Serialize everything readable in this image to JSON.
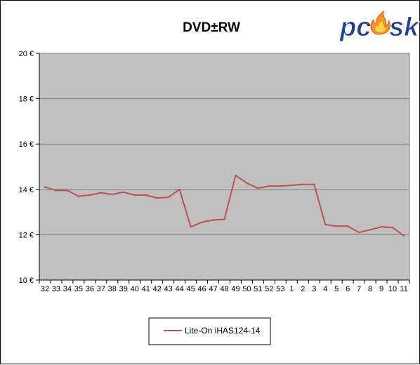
{
  "chart_data": {
    "type": "line",
    "title": "DVD±RW",
    "xlabel": "",
    "ylabel": "",
    "categories": [
      "32",
      "33",
      "34",
      "35",
      "36",
      "37",
      "38",
      "39",
      "40",
      "41",
      "42",
      "43",
      "44",
      "45",
      "46",
      "47",
      "48",
      "49",
      "50",
      "51",
      "52",
      "53",
      "1",
      "2",
      "3",
      "4",
      "5",
      "6",
      "7",
      "8",
      "9",
      "10",
      "11"
    ],
    "series": [
      {
        "name": "Lite-On  iHAS124-14",
        "color": "#c0504d",
        "values": [
          14.1,
          13.95,
          13.95,
          13.7,
          13.75,
          13.85,
          13.78,
          13.88,
          13.75,
          13.75,
          13.62,
          13.65,
          14.0,
          12.35,
          12.55,
          12.65,
          12.68,
          14.62,
          14.28,
          14.05,
          14.15,
          14.15,
          14.18,
          14.22,
          14.22,
          12.45,
          12.38,
          12.38,
          12.1,
          12.22,
          12.35,
          12.32,
          11.95
        ]
      }
    ],
    "ylim": [
      10,
      20
    ],
    "yticks": [
      10,
      12,
      14,
      16,
      18,
      20
    ],
    "ytick_labels": [
      "10 €",
      "12 €",
      "14 €",
      "16 €",
      "18 €",
      "20 €"
    ],
    "grid": "horizontal",
    "legend_position": "bottom",
    "plot_background": "#c0c0c0"
  },
  "logo": {
    "text_left": "pc",
    "text_right": "sk",
    "color": "#1e3f9a",
    "flame_color": "#f7941d"
  }
}
